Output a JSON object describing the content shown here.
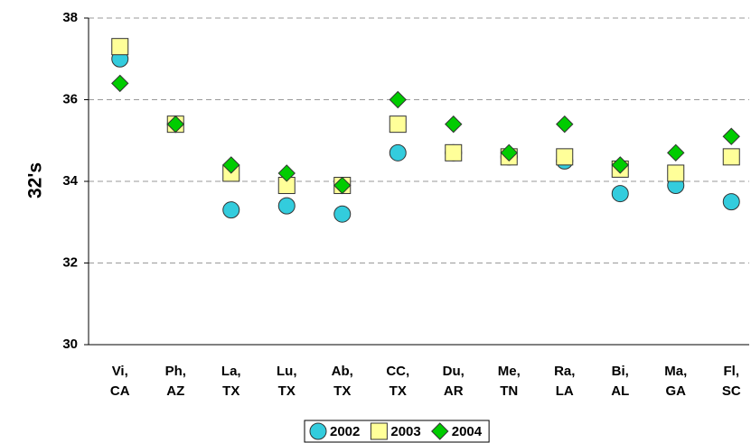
{
  "chart_data": {
    "type": "scatter",
    "ylabel": "32's",
    "categories": [
      "Vi, CA",
      "Ph, AZ",
      "La, TX",
      "Lu, TX",
      "Ab, TX",
      "CC, TX",
      "Du, AR",
      "Me, TN",
      "Ra, LA",
      "Bi, AL",
      "Ma, GA",
      "Fl, SC"
    ],
    "series": [
      {
        "name": "2002",
        "color": "#33ccdd",
        "marker": "circle",
        "values": [
          37.0,
          35.4,
          33.3,
          33.4,
          33.2,
          34.7,
          34.7,
          34.6,
          34.5,
          33.7,
          33.9,
          33.5
        ]
      },
      {
        "name": "2003",
        "color": "#ffff99",
        "marker": "square",
        "values": [
          37.3,
          35.4,
          34.2,
          33.9,
          33.9,
          35.4,
          34.7,
          34.6,
          34.6,
          34.3,
          34.2,
          34.6
        ]
      },
      {
        "name": "2004",
        "color": "#00cc00",
        "marker": "diamond",
        "values": [
          36.4,
          35.4,
          34.4,
          34.2,
          33.9,
          36.0,
          35.4,
          34.7,
          35.4,
          34.4,
          34.7,
          35.1
        ]
      }
    ],
    "ylim": [
      30,
      38
    ],
    "yticks": [
      30,
      32,
      34,
      36,
      38
    ],
    "grid": true,
    "legend": "bottom"
  }
}
